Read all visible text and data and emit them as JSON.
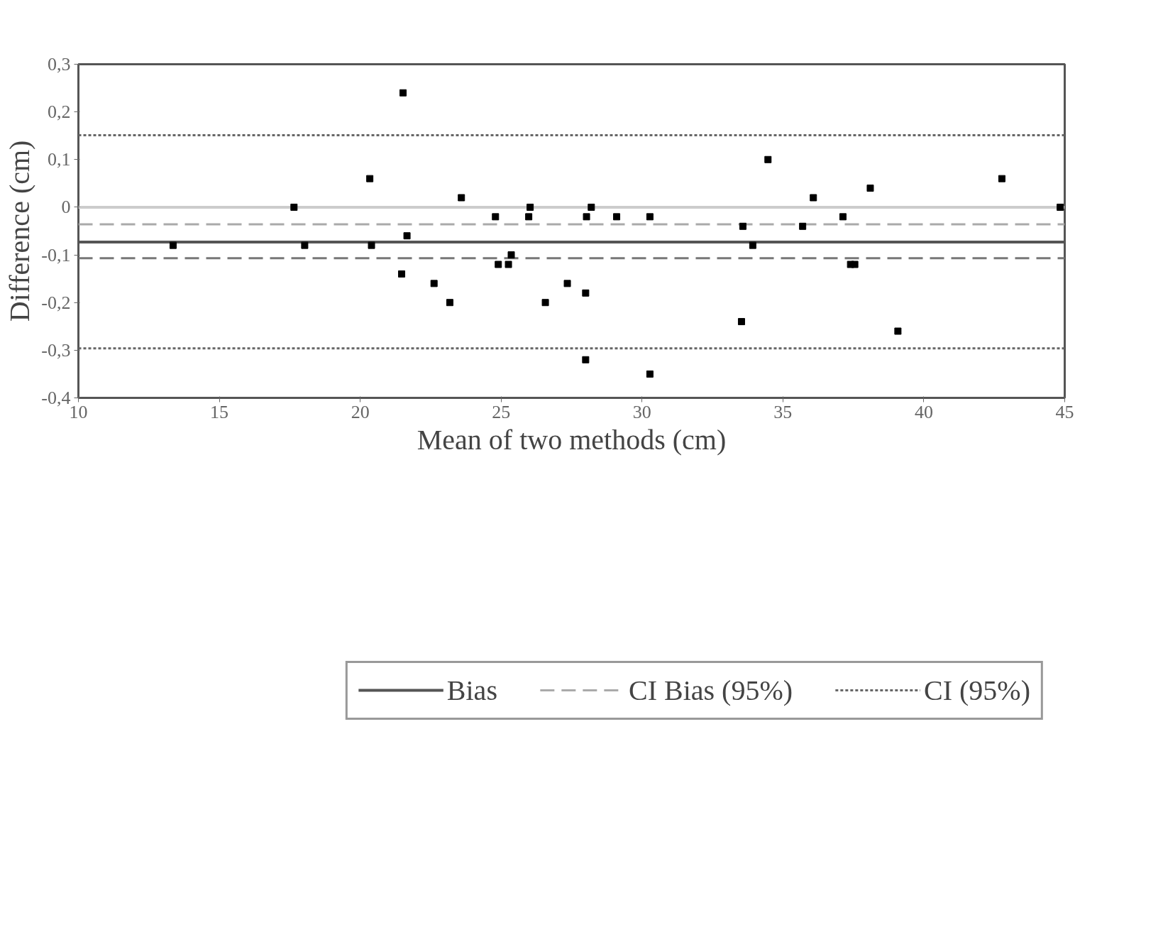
{
  "chart_data": {
    "type": "scatter",
    "xlabel": "Mean of two methods (cm)",
    "ylabel": "Difference (cm)",
    "series": [
      {
        "color": "#000000",
        "x": [
          13.36,
          17.65,
          18.03,
          20.34,
          20.4,
          21.52,
          21.47,
          21.66,
          22.62,
          23.18,
          23.59,
          24.8,
          24.9,
          25.26,
          25.36,
          25.98,
          26.03,
          26.57,
          27.35,
          28.0,
          28.0,
          28.03,
          28.2,
          29.1,
          30.28,
          30.28,
          33.53,
          33.58,
          33.93,
          34.47,
          35.7,
          36.08,
          37.13,
          37.4,
          37.55,
          38.1,
          39.08,
          42.77,
          44.84
        ],
        "values": [
          -0.08,
          0,
          -0.08,
          0.06,
          -0.08,
          0.24,
          -0.14,
          -0.06,
          -0.16,
          -0.2,
          0.02,
          -0.02,
          -0.12,
          -0.12,
          -0.1,
          -0.02,
          0,
          -0.2,
          -0.16,
          -0.18,
          -0.32,
          -0.02,
          0,
          -0.02,
          -0.02,
          -0.35,
          -0.24,
          -0.04,
          -0.08,
          0.1,
          -0.04,
          0.02,
          -0.02,
          -0.12,
          -0.12,
          0.04,
          -0.26,
          0.06,
          0
        ]
      }
    ],
    "marker": "square",
    "xlim": [
      10,
      45
    ],
    "xticks": [
      10,
      15,
      20,
      25,
      30,
      35,
      40,
      45
    ],
    "ylim": [
      -0.4,
      0.3
    ],
    "yticks": [
      {
        "value": -0.4,
        "label": "-0,4"
      },
      {
        "value": -0.3,
        "label": "-0,3"
      },
      {
        "value": -0.2,
        "label": "-0,2"
      },
      {
        "value": -0.1,
        "label": "-0,1"
      },
      {
        "value": 0,
        "label": "0"
      },
      {
        "value": 0.1,
        "label": "0,1"
      },
      {
        "value": 0.2,
        "label": "0,2"
      },
      {
        "value": 0.3,
        "label": "0,3"
      }
    ],
    "ref_lines": [
      {
        "axis": "y",
        "value": 0,
        "label": null,
        "color": "#cccccc",
        "line_style": "solid"
      },
      {
        "axis": "y",
        "value": -0.073,
        "label": "Bias",
        "color": "#555555",
        "line_style": "solid"
      },
      {
        "axis": "y",
        "value": -0.036,
        "label": "CI Bias (95%)",
        "color": "#aaaaaa",
        "line_style": "dashed"
      },
      {
        "axis": "y",
        "value": -0.107,
        "label": null,
        "color": "#777777",
        "line_style": "dashed"
      },
      {
        "axis": "y",
        "value": 0.151,
        "label": "CI (95%)",
        "color": "#666666",
        "line_style": "dotted"
      },
      {
        "axis": "y",
        "value": -0.296,
        "label": null,
        "color": "#666666",
        "line_style": "dotted"
      }
    ],
    "grid": false,
    "legend": "bottom"
  }
}
